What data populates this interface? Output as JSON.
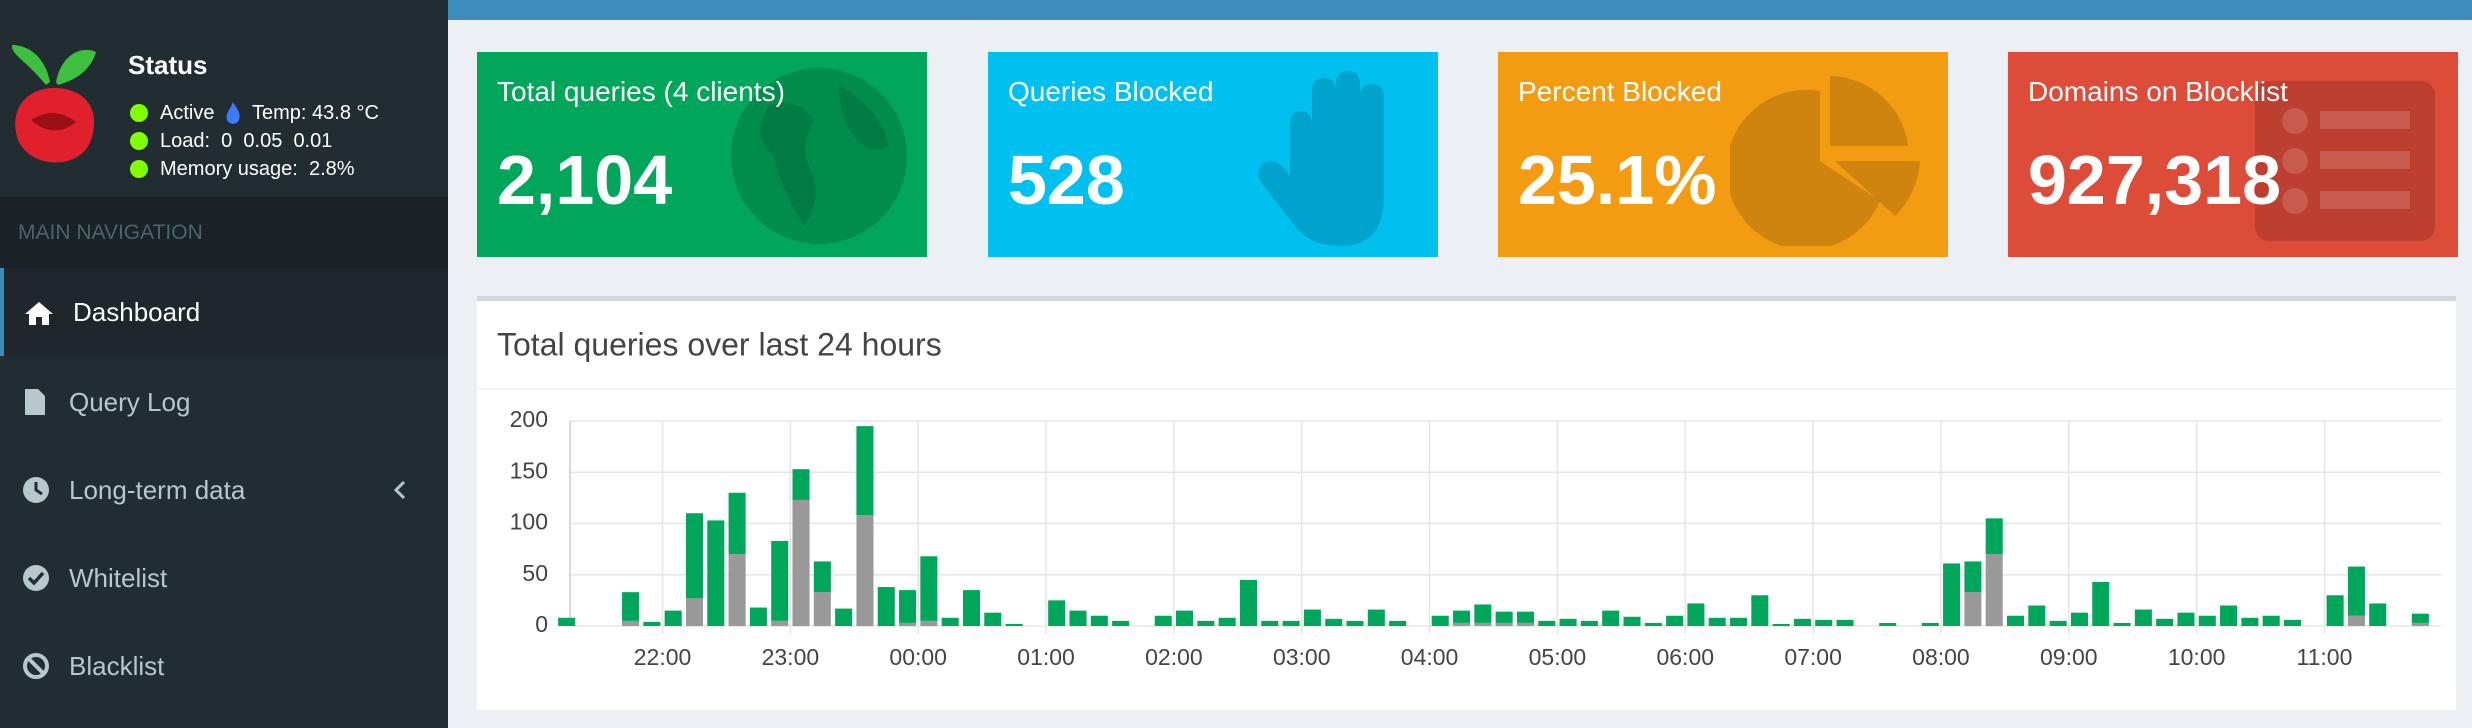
{
  "sidebar": {
    "title": "Status",
    "status": [
      "Active",
      "Temp: 43.8 °C",
      "Load:  0  0.05  0.01",
      "Memory usage:  2.8%"
    ],
    "nav_header": "MAIN NAVIGATION",
    "nav": [
      "Dashboard",
      "Query Log",
      "Long-term data",
      "Whitelist",
      "Blacklist"
    ]
  },
  "stats": [
    {
      "title": "Total queries (4 clients)",
      "value": "2,104"
    },
    {
      "title": "Queries Blocked",
      "value": "528"
    },
    {
      "title": "Percent Blocked",
      "value": "25.1%"
    },
    {
      "title": "Domains on Blocklist",
      "value": "927,318"
    }
  ],
  "chart_data": {
    "type": "bar",
    "stacked": true,
    "title": "Total queries over last 24 hours",
    "categories": [
      null,
      null,
      null,
      null,
      null,
      "22:00",
      null,
      null,
      null,
      null,
      null,
      "23:00",
      null,
      null,
      null,
      null,
      null,
      "00:00",
      null,
      null,
      null,
      null,
      null,
      "01:00",
      null,
      null,
      null,
      null,
      null,
      "02:00",
      null,
      null,
      null,
      null,
      null,
      "03:00",
      null,
      null,
      null,
      null,
      null,
      "04:00",
      null,
      null,
      null,
      null,
      null,
      "05:00",
      null,
      null,
      null,
      null,
      null,
      "06:00",
      null,
      null,
      null,
      null,
      null,
      "07:00",
      null,
      null,
      null,
      null,
      null,
      "08:00",
      null,
      null,
      null,
      null,
      null,
      "09:00",
      null,
      null,
      null,
      null,
      null,
      "10:00",
      null,
      null,
      null,
      null,
      null,
      "11:00",
      null,
      null,
      null,
      null
    ],
    "series": [
      {
        "color": "#999999",
        "values": [
          0,
          0,
          0,
          5,
          0,
          0,
          27,
          0,
          70,
          0,
          5,
          123,
          33,
          0,
          108,
          0,
          3,
          5,
          0,
          0,
          0,
          0,
          0,
          0,
          0,
          0,
          0,
          0,
          0,
          0,
          0,
          0,
          0,
          0,
          0,
          0,
          0,
          0,
          0,
          0,
          0,
          0,
          3,
          3,
          3,
          3,
          0,
          0,
          0,
          0,
          0,
          0,
          0,
          0,
          0,
          0,
          0,
          0,
          0,
          0,
          0,
          0,
          0,
          0,
          0,
          0,
          33,
          70,
          0,
          0,
          0,
          0,
          0,
          0,
          0,
          0,
          0,
          0,
          0,
          0,
          0,
          0,
          0,
          0,
          10,
          0,
          0,
          3
        ]
      },
      {
        "color": "#00a65a",
        "values": [
          8,
          0,
          0,
          28,
          4,
          15,
          83,
          103,
          60,
          18,
          78,
          30,
          30,
          17,
          87,
          38,
          32,
          63,
          8,
          35,
          13,
          2,
          0,
          25,
          15,
          10,
          5,
          0,
          10,
          15,
          5,
          8,
          45,
          5,
          5,
          16,
          7,
          5,
          16,
          5,
          0,
          10,
          12,
          18,
          11,
          11,
          5,
          7,
          5,
          15,
          9,
          3,
          10,
          22,
          8,
          8,
          30,
          2,
          7,
          6,
          6,
          0,
          3,
          0,
          3,
          61,
          30,
          35,
          10,
          20,
          5,
          13,
          43,
          3,
          16,
          7,
          13,
          10,
          20,
          8,
          10,
          6,
          0,
          30,
          48,
          22,
          0,
          9
        ]
      }
    ],
    "ylim": [
      0,
      200
    ],
    "yticks": [
      0,
      50,
      100,
      150,
      200
    ],
    "grid": true
  }
}
